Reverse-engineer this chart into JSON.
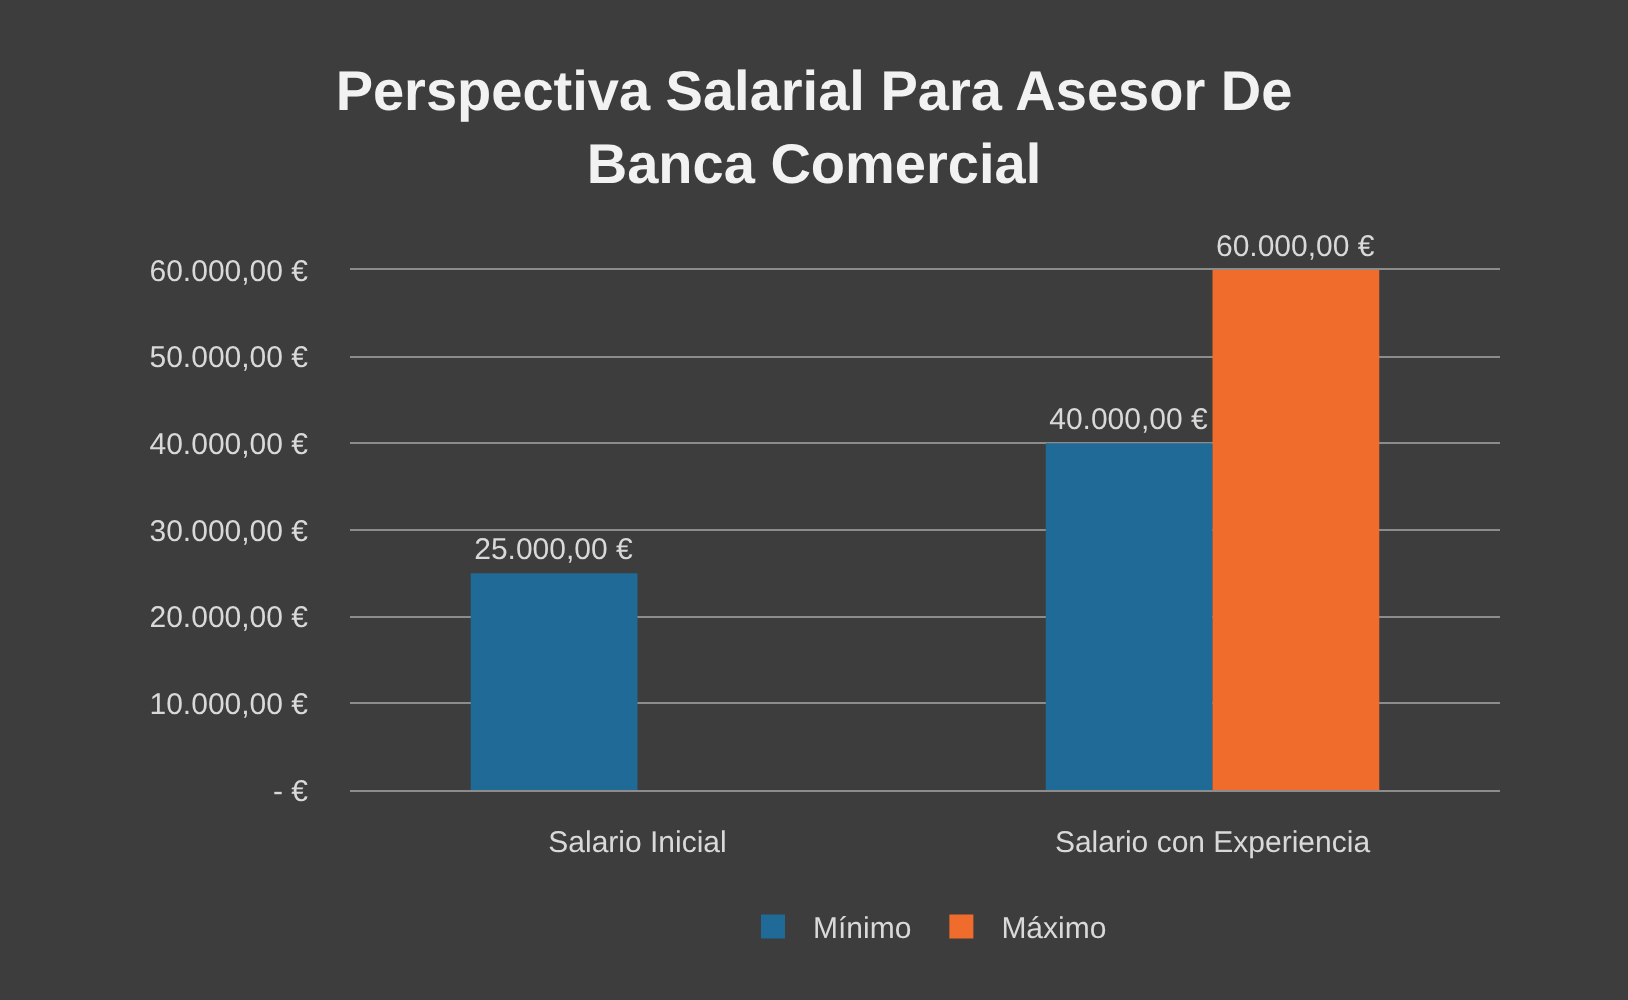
{
  "chart_data": {
    "type": "bar",
    "title": "Perspectiva Salarial Para Asesor De Banca Comercial",
    "categories": [
      "Salario Inicial",
      "Salario con Experiencia"
    ],
    "series": [
      {
        "name": "Mínimo",
        "color": "#1f6a96",
        "values": [
          25000,
          40000
        ],
        "value_labels": [
          "25.000,00 €",
          "40.000,00 €"
        ]
      },
      {
        "name": "Máximo",
        "color": "#f06c2c",
        "values": [
          null,
          60000
        ],
        "value_labels": [
          null,
          "60.000,00 €"
        ]
      }
    ],
    "ylim": [
      0,
      60000
    ],
    "yticks": [
      {
        "value": 0,
        "label": "- €"
      },
      {
        "value": 10000,
        "label": "10.000,00 €"
      },
      {
        "value": 20000,
        "label": "20.000,00 €"
      },
      {
        "value": 30000,
        "label": "30.000,00 €"
      },
      {
        "value": 40000,
        "label": "40.000,00 €"
      },
      {
        "value": 50000,
        "label": "50.000,00 €"
      },
      {
        "value": 60000,
        "label": "60.000,00 €"
      }
    ],
    "grid": "y",
    "legend": "bottom"
  }
}
